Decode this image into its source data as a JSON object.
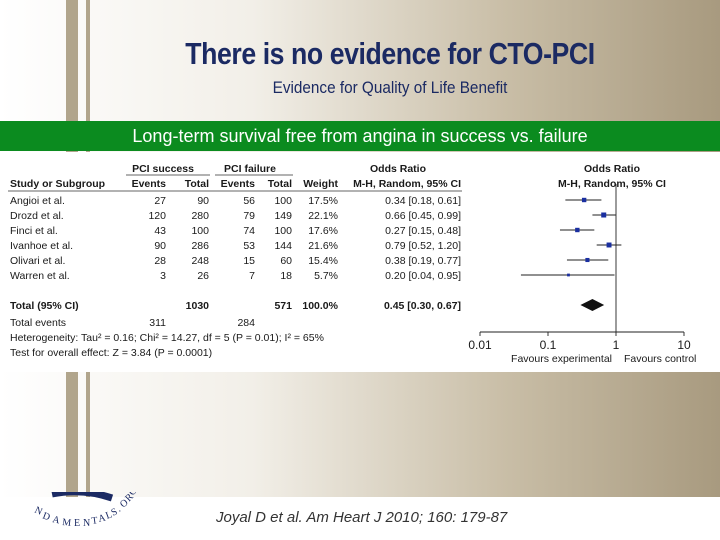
{
  "slide": {
    "title": "There is no evidence for CTO-PCI",
    "subtitle": "Evidence for Quality of Life Benefit",
    "banner": "Long-term survival free from angina in success vs. failure",
    "citation": "Joyal D et al.  Am Heart J 2010; 160: 179-87",
    "logo_text": "FUNDAMENTALS.ORG"
  },
  "colors": {
    "title": "#1b2a63",
    "banner": "#0b8b1f",
    "marker": "#1a2fa0"
  },
  "chart_data": {
    "type": "table",
    "group_headers": {
      "success": "PCI success",
      "failure": "PCI failure",
      "or_left": "Odds Ratio",
      "or_right": "Odds Ratio"
    },
    "columns": [
      "Study or Subgroup",
      "Events",
      "Total",
      "Events",
      "Total",
      "Weight",
      "M-H, Random, 95% CI",
      "M-H, Random, 95% CI"
    ],
    "studies": [
      {
        "name": "Angioi et al.",
        "e1": "27",
        "t1": "90",
        "e2": "56",
        "t2": "100",
        "weight": "17.5%",
        "ci_text": "0.34 [0.18, 0.61]",
        "or": 0.34,
        "lo": 0.18,
        "hi": 0.61
      },
      {
        "name": "Drozd et al.",
        "e1": "120",
        "t1": "280",
        "e2": "79",
        "t2": "149",
        "weight": "22.1%",
        "ci_text": "0.66 [0.45, 0.99]",
        "or": 0.66,
        "lo": 0.45,
        "hi": 0.99
      },
      {
        "name": "Finci et al.",
        "e1": "43",
        "t1": "100",
        "e2": "74",
        "t2": "100",
        "weight": "17.6%",
        "ci_text": "0.27 [0.15, 0.48]",
        "or": 0.27,
        "lo": 0.15,
        "hi": 0.48
      },
      {
        "name": "Ivanhoe et al.",
        "e1": "90",
        "t1": "286",
        "e2": "53",
        "t2": "144",
        "weight": "21.6%",
        "ci_text": "0.79 [0.52, 1.20]",
        "or": 0.79,
        "lo": 0.52,
        "hi": 1.2
      },
      {
        "name": "Olivari et al.",
        "e1": "28",
        "t1": "248",
        "e2": "15",
        "t2": "60",
        "weight": "15.4%",
        "ci_text": "0.38 [0.19, 0.77]",
        "or": 0.38,
        "lo": 0.19,
        "hi": 0.77
      },
      {
        "name": "Warren et al.",
        "e1": "3",
        "t1": "26",
        "e2": "7",
        "t2": "18",
        "weight": "5.7%",
        "ci_text": "0.20 [0.04, 0.95]",
        "or": 0.2,
        "lo": 0.04,
        "hi": 0.95
      }
    ],
    "total": {
      "name": "Total (95% CI)",
      "t1": "1030",
      "t2": "571",
      "weight": "100.0%",
      "ci_text": "0.45 [0.30, 0.67]",
      "or": 0.45,
      "lo": 0.3,
      "hi": 0.67
    },
    "total_events": {
      "label": "Total events",
      "e1": "311",
      "e2": "284"
    },
    "heterogeneity": "Heterogeneity: Tau² = 0.16; Chi² = 14.27, df = 5 (P = 0.01); I² = 65%",
    "overall_effect": "Test for overall effect: Z = 3.84 (P = 0.0001)",
    "axis": {
      "scale": "log",
      "ticks": [
        0.01,
        0.1,
        1,
        10
      ],
      "tick_labels": [
        "0.01",
        "0.1",
        "1",
        "10"
      ]
    },
    "favours_left": "Favours experimental",
    "favours_right": "Favours control"
  }
}
